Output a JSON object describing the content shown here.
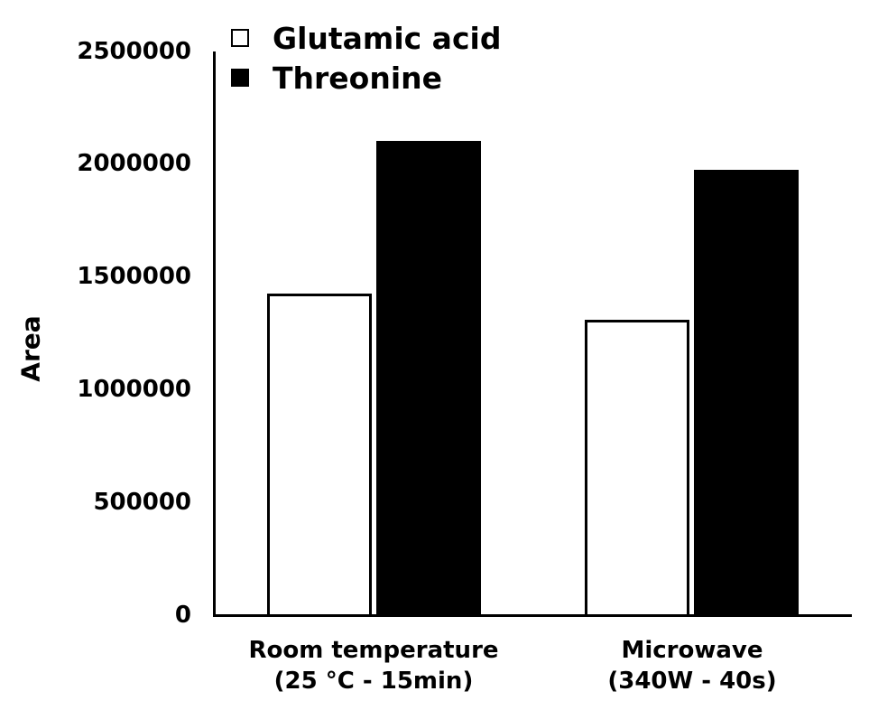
{
  "chart_data": {
    "type": "bar",
    "title": "",
    "xlabel": "",
    "ylabel": "Area",
    "ylim": [
      0,
      2500000
    ],
    "yticks": [
      "0",
      "500000",
      "1000000",
      "1500000",
      "2000000",
      "2500000"
    ],
    "grid": false,
    "legend_position": "top-left inside",
    "categories": [
      "Room temperature (25 °C - 15min)",
      "Microwave (340W - 40s)"
    ],
    "category_lines": [
      [
        "Room temperature",
        "(25 °C - 15min)"
      ],
      [
        "Microwave",
        "(340W - 40s)"
      ]
    ],
    "series": [
      {
        "name": "Glutamic acid",
        "color": "#ffffff",
        "edgecolor": "#000000",
        "values": [
          1425000,
          1310000
        ]
      },
      {
        "name": "Threonine",
        "color": "#000000",
        "edgecolor": "#000000",
        "values": [
          2105000,
          1975000
        ]
      }
    ]
  }
}
